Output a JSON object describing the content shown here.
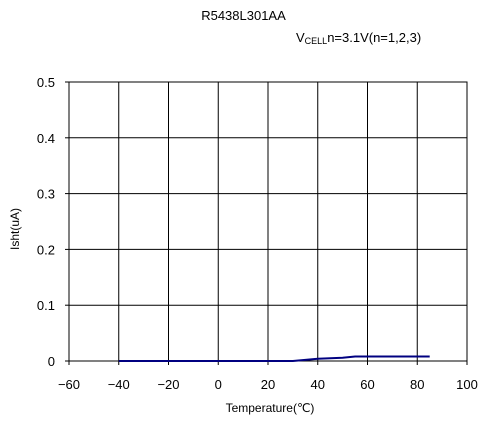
{
  "chart_data": {
    "type": "line",
    "title": "R5438L301AA",
    "condition": {
      "prefix": "V",
      "subscript": "CELL",
      "suffix": "n=3.1V(n=1,2,3)"
    },
    "xlabel": "Temperature(℃)",
    "ylabel": "Isht(uA)",
    "xlim": [
      -60,
      100
    ],
    "ylim": [
      0,
      0.5
    ],
    "x_ticks": [
      -60,
      -40,
      -20,
      0,
      20,
      40,
      60,
      80,
      100
    ],
    "y_ticks": [
      0,
      0.1,
      0.2,
      0.3,
      0.4,
      0.5
    ],
    "x_tick_labels": [
      "−60",
      "−40",
      "−20",
      "0",
      "20",
      "40",
      "60",
      "80",
      "100"
    ],
    "y_tick_labels": [
      "0",
      "0.1",
      "0.2",
      "0.3",
      "0.4",
      "0.5"
    ],
    "grid": true,
    "series": [
      {
        "color": "#000080",
        "x": [
          -40,
          -20,
          0,
          20,
          30,
          40,
          50,
          55,
          60,
          70,
          80,
          85
        ],
        "y": [
          0,
          0,
          0,
          0,
          0,
          0.004,
          0.006,
          0.008,
          0.008,
          0.008,
          0.008,
          0.008
        ]
      }
    ]
  }
}
